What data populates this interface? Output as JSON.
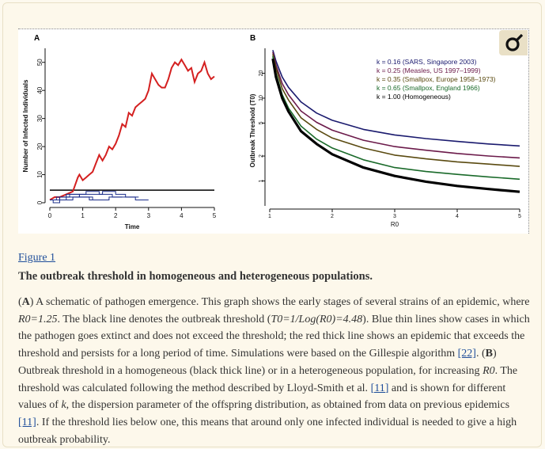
{
  "figure_link": "Figure 1",
  "figure_title": "The outbreak threshold in homogeneous and heterogeneous populations.",
  "caption": {
    "p1a": "(",
    "A_label": "A",
    "p1b": ") A schematic of pathogen emergence. This graph shows the early stages of several strains of an epidemic, where ",
    "R0_eq": "R0=1.25",
    "p1c": ". The black line denotes the outbreak threshold (",
    "T0_eq": "T0=1/Log(R0)=4.48",
    "p1d": "). Blue thin lines show cases in which the pathogen goes extinct and does not exceed the threshold; the red thick line shows an epidemic that exceeds the threshold and persists for a long period of time. Simulations were based on the Gillespie algorithm ",
    "ref22": "[22]",
    "p1e": ". (",
    "B_label": "B",
    "p1f": ") Outbreak threshold in a homogeneous (black thick line) or in a heterogeneous population, for increasing ",
    "R0_var": "R0",
    "p1g": ". The threshold was calculated following the method described by Lloyd-Smith et al. ",
    "ref11a": "[11]",
    "p1h": " and is shown for different values of ",
    "k_var": "k",
    "p1i": ", the dispersion parameter of the offspring distribution, as obtained from data on previous epidemics ",
    "ref11b": "[11]",
    "p1j": ". If the threshold lies below one, this means that around only one infected individual is needed to give a high outbreak probability."
  },
  "magnifier_icon": "magnifier-icon",
  "chart_data": [
    {
      "panel": "A",
      "type": "line",
      "ylabel": "Number of Infected Individuals",
      "xlabel": "Time",
      "xlim": [
        0,
        5
      ],
      "ylim": [
        0,
        55
      ],
      "xticks": [
        "0",
        "1",
        "2",
        "3",
        "4",
        "5"
      ],
      "yticks": [
        "0",
        "10",
        "20",
        "30",
        "40",
        "50"
      ],
      "threshold": 4.48,
      "series": [
        {
          "color": "#d42020",
          "x": [
            0,
            0.15,
            0.3,
            0.5,
            0.7,
            0.85,
            0.9,
            1.0,
            1.1,
            1.2,
            1.3,
            1.4,
            1.5,
            1.6,
            1.7,
            1.8,
            1.9,
            2.0,
            2.1,
            2.2,
            2.3,
            2.4,
            2.5,
            2.6,
            2.7,
            2.8,
            2.9,
            3.0,
            3.1,
            3.2,
            3.3,
            3.4,
            3.5,
            3.6,
            3.7,
            3.8,
            3.9,
            4.0,
            4.1,
            4.2,
            4.3,
            4.4,
            4.5,
            4.6,
            4.7,
            4.8,
            4.9,
            5.0
          ],
          "y": [
            1,
            2,
            2,
            3,
            4,
            9,
            10,
            8,
            9,
            10,
            11,
            14,
            17,
            15,
            17,
            20,
            19,
            21,
            24,
            28,
            27,
            32,
            31,
            34,
            35,
            36,
            37,
            40,
            46,
            44,
            42,
            41,
            41,
            44,
            48,
            50,
            49,
            51,
            49,
            47,
            48,
            43,
            46,
            47,
            50,
            46,
            44,
            45
          ]
        },
        {
          "color": "#1a2c8a",
          "x": [
            0,
            0.3,
            0.3,
            0.6,
            0.6,
            1.1,
            1.1,
            1.5,
            1.5,
            1.9,
            1.9,
            2.2
          ],
          "y": [
            1,
            1,
            2,
            2,
            3,
            3,
            4,
            4,
            3,
            3,
            2,
            2
          ]
        },
        {
          "color": "#1a2c8a",
          "x": [
            0,
            0.5,
            0.5,
            0.9,
            0.9,
            1.6,
            1.6,
            2.0,
            2.0,
            2.3,
            2.3,
            2.6,
            2.6,
            3.0
          ],
          "y": [
            1,
            1,
            2,
            2,
            3,
            3,
            4,
            4,
            3,
            3,
            2,
            2,
            1,
            1
          ]
        },
        {
          "color": "#1a2c8a",
          "x": [
            0,
            0.2,
            0.2,
            0.5,
            0.5,
            0.9,
            0.9,
            1.3,
            1.3,
            1.8,
            1.8,
            2.7
          ],
          "y": [
            1,
            1,
            2,
            2,
            3,
            3,
            2,
            2,
            1,
            1,
            2,
            2
          ]
        },
        {
          "color": "#1a2c8a",
          "x": [
            0,
            0.1,
            0.1,
            0.3,
            0.3,
            0.7,
            0.7,
            1.2,
            1.2,
            1.7
          ],
          "y": [
            1,
            1,
            0,
            0,
            1,
            1,
            2,
            2,
            1,
            1
          ]
        }
      ]
    },
    {
      "panel": "B",
      "type": "line",
      "ylabel": "Outbreak Threshold (T0)",
      "xlabel": "R0",
      "xlim": [
        1,
        5
      ],
      "ylim": [
        0.5,
        40
      ],
      "log_y": true,
      "xticks": [
        "1",
        "2",
        "3",
        "4",
        "5"
      ],
      "yticks": [
        "1",
        "2",
        "5",
        "10",
        "20"
      ],
      "legend": [
        {
          "text": "k = 0.16 (SARS, Singapore 2003)",
          "color": "#1a1a6e"
        },
        {
          "text": "k = 0.25 (Measles, US 1997–1999)",
          "color": "#6b1a4a"
        },
        {
          "text": "k = 0.35 (Smallpox, Europe 1958–1973)",
          "color": "#5a4a10"
        },
        {
          "text": "k = 0.65 (Smallpox, England 1966)",
          "color": "#1a6a2a"
        },
        {
          "text": "k = 1.00 (Homogeneous)",
          "color": "#000000"
        }
      ],
      "series": [
        {
          "name": "k = 0.16",
          "color": "#1a1a6e",
          "width": 1.6,
          "x": [
            1.05,
            1.1,
            1.2,
            1.3,
            1.5,
            1.75,
            2.0,
            2.5,
            3.0,
            3.5,
            4.0,
            4.5,
            5.0
          ],
          "y": [
            38,
            28,
            18,
            13.5,
            9,
            6.6,
            5.4,
            4.2,
            3.6,
            3.25,
            3.0,
            2.8,
            2.65
          ]
        },
        {
          "name": "k = 0.25",
          "color": "#6b1a4a",
          "width": 1.6,
          "x": [
            1.05,
            1.1,
            1.2,
            1.3,
            1.5,
            1.75,
            2.0,
            2.5,
            3.0,
            3.5,
            4.0,
            4.5,
            5.0
          ],
          "y": [
            36,
            25,
            15,
            11,
            7,
            5.1,
            4.1,
            3.1,
            2.6,
            2.35,
            2.15,
            2.0,
            1.9
          ]
        },
        {
          "name": "k = 0.35",
          "color": "#5a4a10",
          "width": 1.6,
          "x": [
            1.05,
            1.1,
            1.2,
            1.3,
            1.5,
            1.75,
            2.0,
            2.5,
            3.0,
            3.5,
            4.0,
            4.5,
            5.0
          ],
          "y": [
            34,
            23,
            13,
            9.5,
            5.8,
            4.2,
            3.3,
            2.5,
            2.05,
            1.85,
            1.7,
            1.6,
            1.5
          ]
        },
        {
          "name": "k = 0.65",
          "color": "#1a6a2a",
          "width": 1.6,
          "x": [
            1.05,
            1.1,
            1.2,
            1.3,
            1.5,
            1.75,
            2.0,
            2.5,
            3.0,
            3.5,
            4.0,
            4.5,
            5.0
          ],
          "y": [
            32,
            20,
            11,
            7.6,
            4.6,
            3.2,
            2.5,
            1.8,
            1.45,
            1.3,
            1.2,
            1.12,
            1.05
          ]
        },
        {
          "name": "k = 1.00",
          "color": "#000000",
          "width": 3.2,
          "x": [
            1.05,
            1.1,
            1.2,
            1.3,
            1.5,
            1.75,
            2.0,
            2.5,
            3.0,
            3.5,
            4.0,
            4.5,
            5.0
          ],
          "y": [
            30,
            18,
            10,
            6.9,
            4.0,
            2.8,
            2.1,
            1.45,
            1.15,
            0.98,
            0.87,
            0.8,
            0.74
          ]
        }
      ]
    }
  ]
}
